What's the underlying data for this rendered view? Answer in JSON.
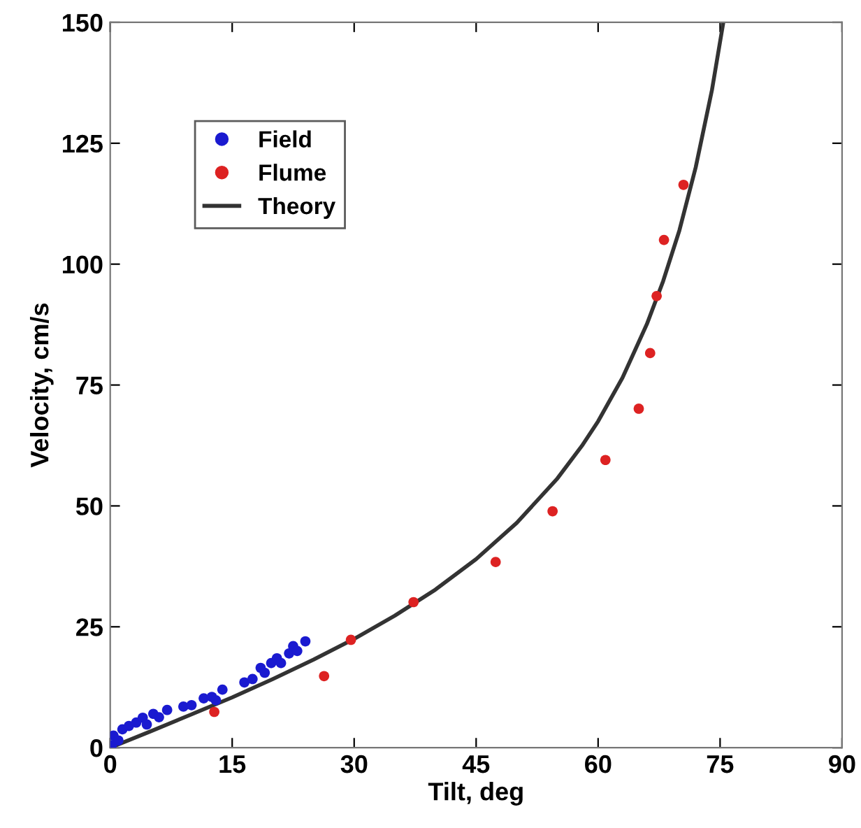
{
  "chart_data": {
    "type": "scatter",
    "xlabel": "Tilt, deg",
    "ylabel": "Velocity, cm/s",
    "xlim": [
      0,
      90
    ],
    "ylim": [
      0,
      150
    ],
    "xticks": [
      0,
      15,
      30,
      45,
      60,
      75,
      90
    ],
    "yticks": [
      0,
      25,
      50,
      75,
      100,
      125,
      150
    ],
    "grid": false,
    "legend": "top left",
    "marker": "circle",
    "series": [
      {
        "name": "Field",
        "color": "#1a1ad0",
        "x": [
          0.2,
          0.4,
          1.0,
          1.5,
          2.3,
          3.2,
          4.0,
          4.5,
          5.3,
          6.0,
          7.0,
          9.0,
          10.0,
          11.5,
          12.5,
          13.0,
          13.8,
          16.5,
          17.5,
          18.5,
          19.0,
          19.8,
          20.5,
          21.0,
          22.0,
          22.5,
          23.0,
          24.0
        ],
        "values": [
          0.5,
          2.5,
          1.5,
          3.8,
          4.5,
          5.2,
          6.2,
          4.8,
          7.0,
          6.3,
          7.8,
          8.5,
          8.8,
          10.2,
          10.5,
          9.8,
          12.0,
          13.5,
          14.2,
          16.5,
          15.5,
          17.5,
          18.5,
          17.5,
          19.5,
          21.0,
          20.0,
          22.0
        ]
      },
      {
        "name": "Flume",
        "color": "#dd2222",
        "x": [
          12.8,
          26.3,
          29.6,
          37.3,
          47.4,
          54.4,
          60.9,
          65.0,
          66.4,
          67.2,
          68.1,
          70.5
        ],
        "values": [
          7.4,
          14.8,
          22.3,
          30.1,
          38.4,
          48.9,
          59.5,
          70.1,
          81.6,
          93.4,
          105.0,
          116.4
        ]
      },
      {
        "name": "Theory",
        "color": "#333333",
        "type": "line",
        "marker": "none",
        "line_style": "solid",
        "x": [
          0,
          5,
          10,
          15,
          20,
          25,
          30,
          35,
          40,
          45,
          50,
          55,
          58,
          60,
          63,
          66,
          68,
          70,
          72,
          74,
          75.4
        ],
        "values": [
          0,
          3.4,
          6.9,
          10.4,
          14.2,
          18.2,
          22.5,
          27.3,
          32.7,
          39.0,
          46.5,
          55.7,
          62.4,
          67.5,
          76.5,
          87.6,
          96.5,
          107.0,
          120.0,
          136.0,
          150.0
        ]
      }
    ]
  }
}
